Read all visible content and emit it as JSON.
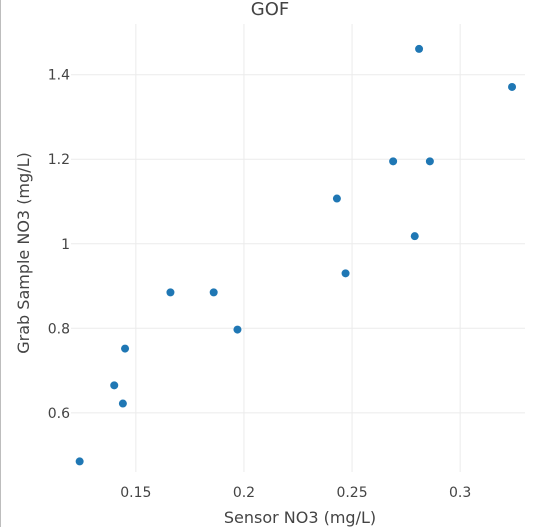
{
  "chart_data": {
    "type": "scatter",
    "title": "GOF",
    "xlabel": "Sensor NO3 (mg/L)",
    "ylabel": "Grab Sample NO3 (mg/L)",
    "xlim": [
      0.12,
      0.33
    ],
    "ylim": [
      0.46,
      1.52
    ],
    "x_ticks": [
      0.15,
      0.2,
      0.25,
      0.3
    ],
    "x_tick_labels": [
      "0.15",
      "0.2",
      "0.25",
      "0.3"
    ],
    "y_ticks": [
      0.6,
      0.8,
      1.0,
      1.2,
      1.4
    ],
    "y_tick_labels": [
      "0.6",
      "0.8",
      "1",
      "1.2",
      "1.4"
    ],
    "grid": true,
    "marker_color": "#1f77b4",
    "series": [
      {
        "x": [
          0.124,
          0.14,
          0.144,
          0.145,
          0.166,
          0.186,
          0.197,
          0.243,
          0.247,
          0.269,
          0.279,
          0.281,
          0.286,
          0.324
        ],
        "y": [
          0.485,
          0.665,
          0.622,
          0.752,
          0.885,
          0.885,
          0.797,
          1.107,
          0.93,
          1.195,
          1.018,
          1.461,
          1.195,
          1.371
        ]
      }
    ]
  }
}
